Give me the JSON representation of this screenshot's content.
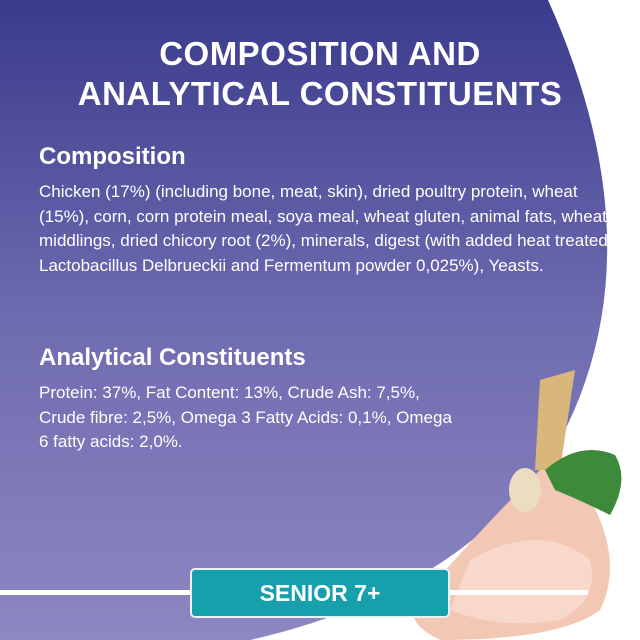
{
  "title": [
    "COMPOSITION AND",
    "ANALYTICAL CONSTITUENTS"
  ],
  "composition": {
    "heading": "Composition",
    "text": "Chicken (17%) (including bone, meat, skin), dried poultry protein, wheat (15%), corn, corn protein meal, soya meal, wheat gluten, animal fats, wheat middlings, dried chicory root (2%), minerals, digest (with added heat treated Lactobacillus Delbrueckii and Fermentum powder 0,025%), Yeasts."
  },
  "analytical": {
    "heading": "Analytical Constituents",
    "text": "Protein: 37%, Fat Content: 13%, Crude Ash: 7,5%, Crude fibre: 2,5%, Omega 3 Fatty Acids: 0,1%, Omega 6 fatty acids: 2,0%."
  },
  "badge": "SENIOR 7+",
  "colors": {
    "gradient_top": "#3a3b8c",
    "gradient_bottom": "#8d88c2",
    "badge": "#15a0ac"
  }
}
